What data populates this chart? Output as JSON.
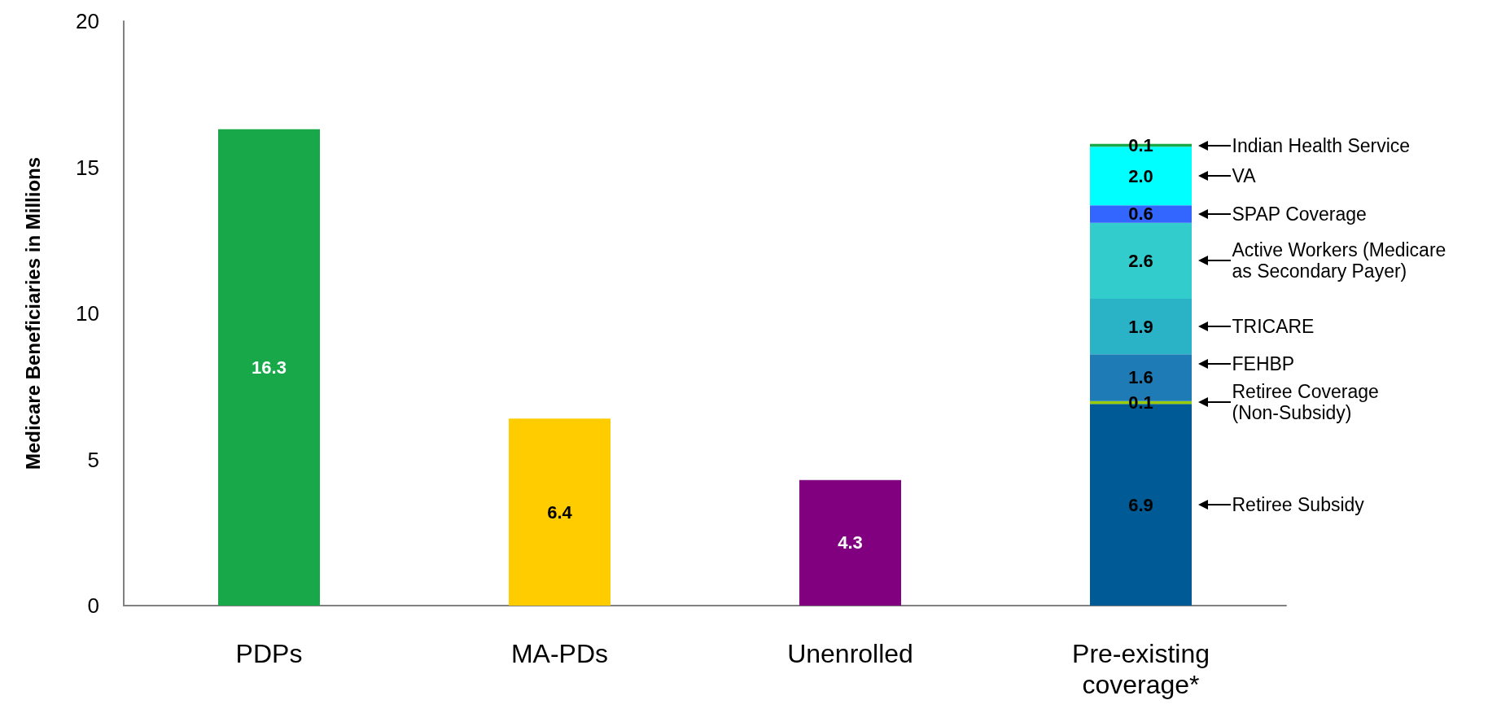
{
  "chart_data": {
    "type": "bar",
    "ylabel": "Medicare Beneficiaries in Millions",
    "categories": [
      "PDPs",
      "MA-PDs",
      "Unenrolled",
      "Pre-existing coverage*"
    ],
    "stacked": true,
    "legend": false,
    "grid": false,
    "ylim": [
      0,
      20
    ],
    "yticks": [
      0,
      5,
      10,
      15,
      20
    ],
    "series": [
      {
        "colors": [
          "#18a84a",
          "#ffcc00",
          "#800080",
          null
        ],
        "values": [
          16.3,
          6.4,
          4.3,
          null
        ],
        "value_labels": [
          "16.3",
          "6.4",
          "4.3",
          null
        ]
      },
      {
        "name": "Retiree Subsidy",
        "color": "#005a96",
        "values": [
          null,
          null,
          null,
          6.9
        ],
        "value_labels": [
          null,
          null,
          null,
          "6.9"
        ]
      },
      {
        "name": "Retiree Coverage (Non-Subsidy)",
        "color": "#99cc00",
        "values": [
          null,
          null,
          null,
          0.1
        ],
        "value_labels": [
          null,
          null,
          null,
          "0.1"
        ]
      },
      {
        "name": "FEHBP",
        "color": "#1f7bb6",
        "values": [
          null,
          null,
          null,
          1.6
        ],
        "value_labels": [
          null,
          null,
          null,
          "1.6"
        ]
      },
      {
        "name": "TRICARE",
        "color": "#2ab2c6",
        "values": [
          null,
          null,
          null,
          1.9
        ],
        "value_labels": [
          null,
          null,
          null,
          "1.9"
        ]
      },
      {
        "name": "Active Workers (Medicare as Secondary Payer)",
        "color": "#33cccc",
        "values": [
          null,
          null,
          null,
          2.6
        ],
        "value_labels": [
          null,
          null,
          null,
          "2.6"
        ]
      },
      {
        "name": "SPAP Coverage",
        "color": "#3366ff",
        "values": [
          null,
          null,
          null,
          0.6
        ],
        "value_labels": [
          null,
          null,
          null,
          "0.6"
        ]
      },
      {
        "name": "VA",
        "color": "#00ffff",
        "values": [
          null,
          null,
          null,
          2.0
        ],
        "value_labels": [
          null,
          null,
          null,
          "2.0"
        ]
      },
      {
        "name": "Indian Health Service",
        "color": "#18a84a",
        "values": [
          null,
          null,
          null,
          0.1
        ],
        "value_labels": [
          null,
          null,
          null,
          "0.1"
        ]
      }
    ]
  }
}
